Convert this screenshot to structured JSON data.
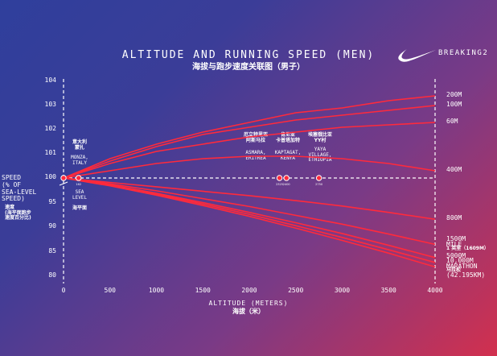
{
  "header": {
    "title": "ALTITUDE AND RUNNING SPEED (MEN)",
    "subtitle": "海拔与跑步速度关联图（男子）",
    "brand": "BREAKING2",
    "logo_icon": "nike-swoosh-icon"
  },
  "chart_data": {
    "type": "line",
    "title": "ALTITUDE AND RUNNING SPEED (MEN)",
    "xlabel": "ALTITUDE (METERS)",
    "xlabel_cn": "海拔（米）",
    "ylabel": "SPEED\n(% OF\nSEA-LEVEL\nSPEED)",
    "ylabel_cn": "速度\n(海平面跑步\n速度百分比)",
    "x_ticks": [
      "0",
      "500",
      "1000",
      "1500",
      "2000",
      "2500",
      "3000",
      "3500",
      "4000"
    ],
    "y_ticks": [
      "104",
      "103",
      "102",
      "101",
      "100",
      "95",
      "90",
      "85",
      "80"
    ],
    "y_tick_values": [
      104,
      103,
      102,
      101,
      100,
      95,
      90,
      85,
      80
    ],
    "xlim": [
      0,
      4000
    ],
    "grid": false,
    "x": [
      0,
      500,
      1000,
      1500,
      2000,
      2500,
      3000,
      3500,
      4000
    ],
    "series": [
      {
        "name": "200M",
        "values": [
          100,
          100.8,
          101.4,
          101.9,
          102.3,
          102.7,
          102.9,
          103.2,
          103.4
        ]
      },
      {
        "name": "100M",
        "values": [
          100,
          100.7,
          101.3,
          101.8,
          102.1,
          102.4,
          102.6,
          102.8,
          103.0
        ]
      },
      {
        "name": "60M",
        "values": [
          100,
          100.6,
          101.1,
          101.4,
          101.7,
          101.9,
          102.1,
          102.2,
          102.3
        ]
      },
      {
        "name": "400M",
        "values": [
          100,
          100.3,
          100.6,
          100.8,
          100.9,
          100.9,
          100.8,
          100.6,
          100.3
        ]
      },
      {
        "name": "800M",
        "values": [
          100,
          99.1,
          98.2,
          97.3,
          96.4,
          95.4,
          94.3,
          93.0,
          91.6
        ]
      },
      {
        "name": "1500M MILE",
        "values": [
          100,
          98.8,
          97.4,
          95.8,
          94.2,
          92.4,
          90.6,
          88.6,
          86.5
        ]
      },
      {
        "name": "5000M",
        "values": [
          100,
          98.6,
          96.9,
          95.0,
          93.0,
          90.9,
          88.7,
          86.3,
          83.8
        ]
      },
      {
        "name": "10,000M",
        "values": [
          100,
          98.5,
          96.7,
          94.7,
          92.6,
          90.3,
          87.9,
          85.4,
          82.8
        ]
      },
      {
        "name": "MARATHON",
        "values": [
          100,
          98.4,
          96.5,
          94.4,
          92.2,
          89.8,
          87.3,
          84.7,
          81.9
        ]
      }
    ],
    "right_labels": [
      {
        "id": "l200",
        "text": "200M",
        "at": 103.4
      },
      {
        "id": "l100",
        "text": "100M",
        "at": 103.0
      },
      {
        "id": "l60",
        "text": "60M",
        "at": 102.3
      },
      {
        "id": "l400",
        "text": "400M",
        "at": 100.3
      },
      {
        "id": "l800",
        "text": "800M",
        "at": 91.6
      },
      {
        "id": "l1500",
        "text": "1500M",
        "at": 87.3
      },
      {
        "id": "lmile",
        "text": "MILE",
        "at": 86.2
      },
      {
        "id": "lmilecn",
        "text": "1 英里（1609M）",
        "at": 85.3,
        "cn": true
      },
      {
        "id": "l5000",
        "text": "5000M",
        "at": 83.9
      },
      {
        "id": "l10000",
        "text": "10,000M",
        "at": 82.9
      },
      {
        "id": "lmar",
        "text": "MARATHON",
        "at": 81.8
      },
      {
        "id": "lmarcn",
        "text": "马拉松",
        "at": 80.9,
        "cn": true
      },
      {
        "id": "lmarkm",
        "text": "(42.195KM)",
        "at": 80.0
      }
    ],
    "locations": [
      {
        "name": "SEA LEVEL",
        "cn": "海平面",
        "altitude": 0
      },
      {
        "name": "MONZA, ITALY",
        "cn": "意大利 蒙扎",
        "altitude": 162,
        "tag": "162"
      },
      {
        "name": "ASMARA, ERITREA",
        "cn": "厄立特里亚 阿斯马拉",
        "altitude": 2325,
        "tag": "2325"
      },
      {
        "name": "KAPTAGAT, KENYA",
        "cn": "肯尼亚 卡普塔加特",
        "altitude": 2400,
        "tag": "2400"
      },
      {
        "name": "YAYA VILLAGE, ETHIOPIA",
        "cn": "埃塞俄比亚 YY村",
        "altitude": 2750,
        "tag": "2750"
      }
    ],
    "annotations": {
      "sea_en": "SEA\nLEVEL",
      "sea_cn": "海平面",
      "monza_cn": "意大利\n蒙扎",
      "monza_en": "MONZA,\nITALY",
      "asmara_cn": "厄立特里亚\n阿斯马拉",
      "asmara_en": "ASMARA,\nERITREA",
      "kaptagat_cn": "肯尼亚\n卡普塔加特",
      "kaptagat_en": "KAPTAGAT,\nKENYA",
      "yaya_cn": "埃塞俄比亚\nYY村",
      "yaya_en": "YAYA\nVILLAGE,\nETHIOPIA"
    },
    "colors": {
      "line": "#ff2a3c",
      "axis": "#ffffff",
      "marker_stroke": "#ffffff"
    }
  }
}
